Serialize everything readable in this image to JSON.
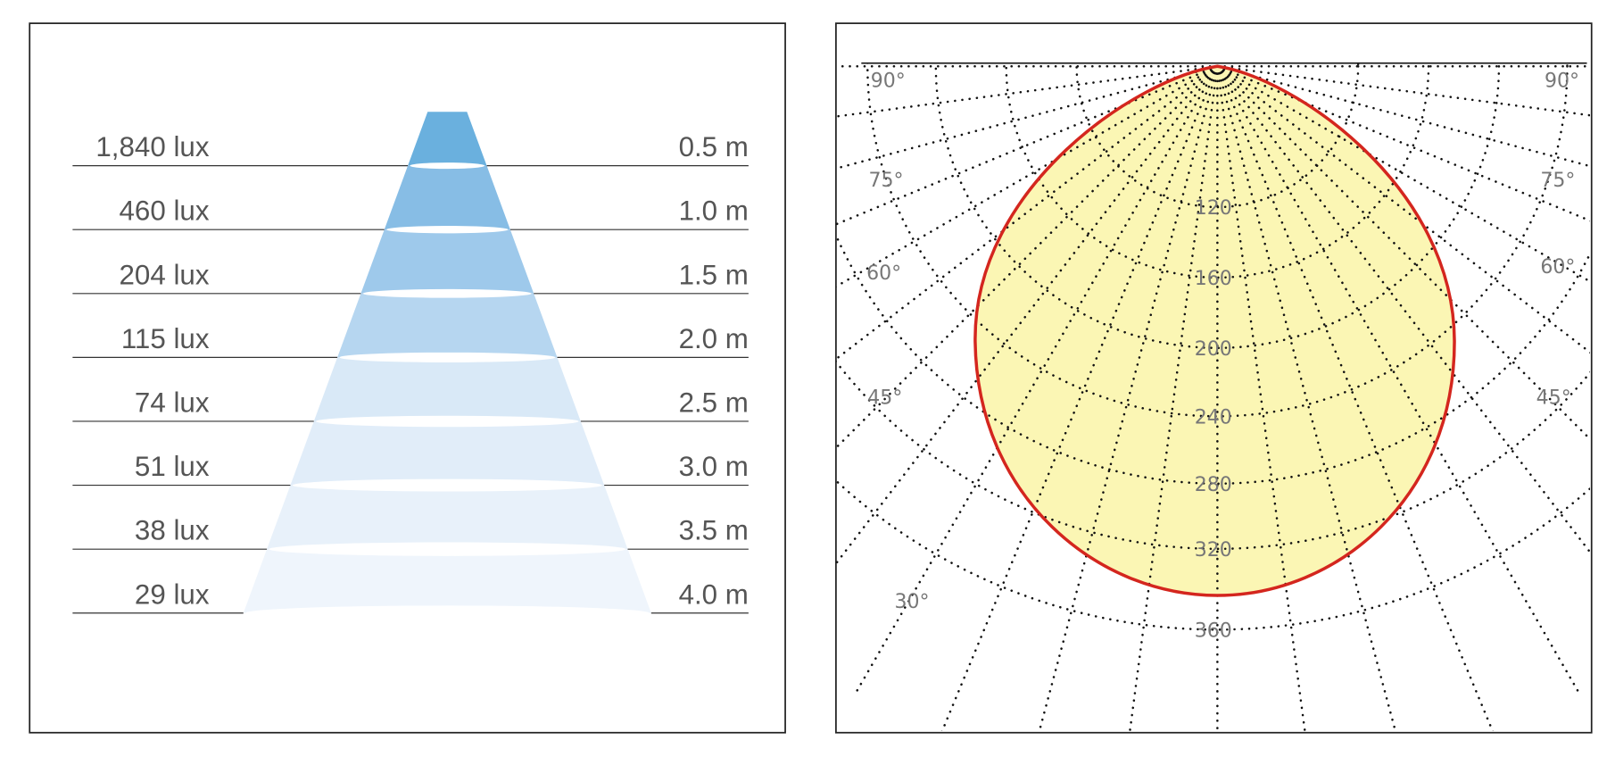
{
  "left_panel": {
    "rows": [
      {
        "illuminance": "1,840 lux",
        "distance": "0.5 m"
      },
      {
        "illuminance": "460 lux",
        "distance": "1.0 m"
      },
      {
        "illuminance": "204 lux",
        "distance": "1.5 m"
      },
      {
        "illuminance": "115 lux",
        "distance": "2.0 m"
      },
      {
        "illuminance": "74 lux",
        "distance": "2.5 m"
      },
      {
        "illuminance": "51 lux",
        "distance": "3.0 m"
      },
      {
        "illuminance": "38 lux",
        "distance": "3.5 m"
      },
      {
        "illuminance": "29 lux",
        "distance": "4.0 m"
      }
    ]
  },
  "right_panel": {
    "radial_labels": [
      "120",
      "160",
      "200",
      "240",
      "280",
      "320",
      "360"
    ],
    "angle_labels_left": [
      "90°",
      "75°",
      "60°",
      "45°",
      "30°"
    ],
    "angle_labels_right": [
      "90°",
      "75°",
      "60°",
      "45°"
    ]
  }
}
